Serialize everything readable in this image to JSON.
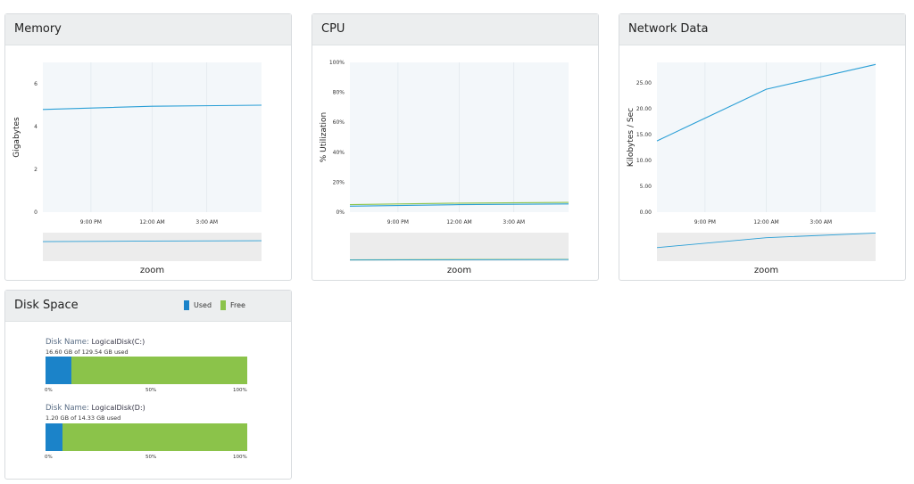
{
  "colors": {
    "used": "#1b83c9",
    "free": "#8bc34a",
    "line_blue": "#2a9fd6",
    "line_green": "#8bc34a",
    "plot_bg": "#f3f7fa"
  },
  "memory": {
    "title": "Memory",
    "zoom": "zoom",
    "chart_data": {
      "type": "line",
      "ylabel": "Gigabytes",
      "ylim": [
        0,
        7
      ],
      "yticks": [
        "6",
        "4",
        "2",
        "0"
      ],
      "xticks": [
        "9:00 PM",
        "12:00 AM",
        "3:00 AM"
      ],
      "series": [
        {
          "values": [
            4.8,
            4.95,
            5.0
          ]
        }
      ]
    }
  },
  "cpu": {
    "title": "CPU",
    "zoom": "zoom",
    "chart_data": {
      "type": "line",
      "ylabel": "% Utilization",
      "ylim": [
        0,
        100
      ],
      "yticks": [
        "100%",
        "80%",
        "60%",
        "40%",
        "20%",
        "0%"
      ],
      "xticks": [
        "9:00 PM",
        "12:00 AM",
        "3:00 AM"
      ],
      "series": [
        {
          "values": [
            5,
            6,
            6.5
          ]
        },
        {
          "values": [
            4,
            5,
            5.5
          ]
        }
      ]
    }
  },
  "network": {
    "title": "Network Data",
    "zoom": "zoom",
    "chart_data": {
      "type": "line",
      "ylabel": "Kilobytes / Sec",
      "ylim": [
        0,
        29
      ],
      "yticks": [
        "25.00",
        "20.00",
        "15.00",
        "10.00",
        "5.00",
        "0.00"
      ],
      "xticks": [
        "9:00 PM",
        "12:00 AM",
        "3:00 AM"
      ],
      "series": [
        {
          "values": [
            13.8,
            23.8,
            28.6
          ]
        }
      ]
    }
  },
  "disk": {
    "title": "Disk Space",
    "legend": {
      "used": "Used",
      "free": "Free"
    },
    "ticks": [
      "0%",
      "50%",
      "100%"
    ],
    "name_label": "Disk Name:",
    "chart_data": {
      "type": "bar",
      "categories": [
        "LogicalDisk(C:)",
        "LogicalDisk(D:)"
      ],
      "series": [
        {
          "name": "Used",
          "values": [
            16.6,
            1.2
          ]
        },
        {
          "name": "Free",
          "values": [
            112.94,
            13.13
          ]
        }
      ]
    },
    "disks": [
      {
        "name": "LogicalDisk(C:)",
        "used_text": "16.60 GB of 129.54 GB used",
        "used_pct": 12.8
      },
      {
        "name": "LogicalDisk(D:)",
        "used_text": "1.20 GB of 14.33 GB used",
        "used_pct": 8.4
      }
    ]
  }
}
